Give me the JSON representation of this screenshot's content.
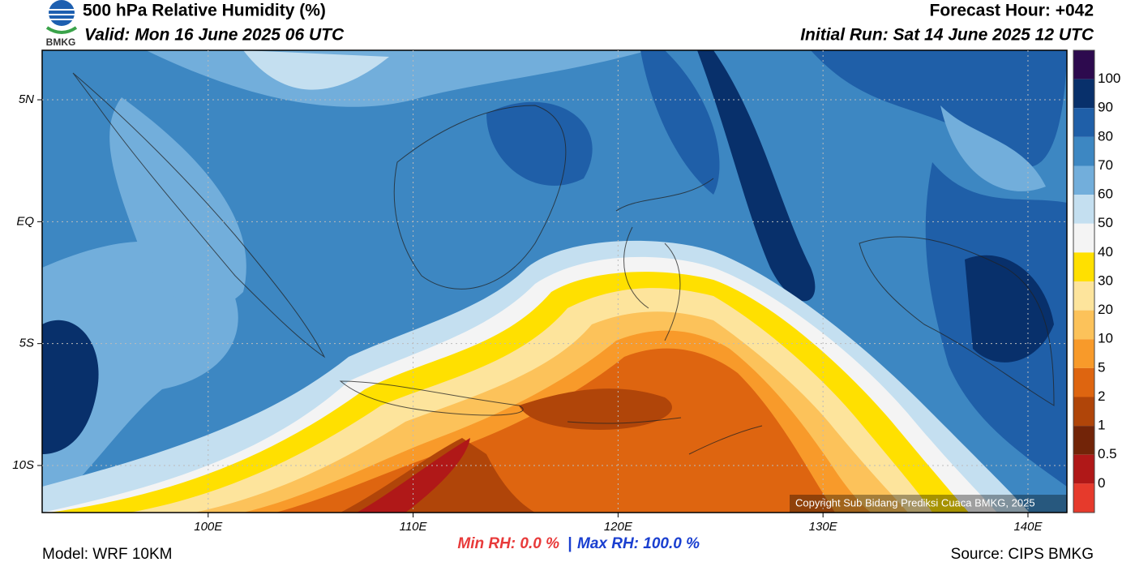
{
  "header": {
    "title": "500 hPa Relative Humidity (%)",
    "valid": "Valid: Mon 16 June 2025 06 UTC",
    "forecast_hour": "Forecast Hour: +042",
    "initial_run": "Initial Run: Sat 14 June 2025 12 UTC",
    "logo_text": "BMKG"
  },
  "map": {
    "xlim": [
      91.9,
      141.9
    ],
    "ylim": [
      -11.93,
      7.03
    ],
    "xticks": [
      {
        "value": 100,
        "label": "100E"
      },
      {
        "value": 110,
        "label": "110E"
      },
      {
        "value": 120,
        "label": "120E"
      },
      {
        "value": 130,
        "label": "130E"
      },
      {
        "value": 140,
        "label": "140E"
      }
    ],
    "yticks": [
      {
        "value": 5,
        "label": "5N"
      },
      {
        "value": 0,
        "label": "EQ"
      },
      {
        "value": -5,
        "label": "5S"
      },
      {
        "value": -10,
        "label": "10S"
      }
    ],
    "copyright": "Copyright Sub Bidang Prediksi Cuaca BMKG, 2025"
  },
  "colorbar": {
    "levels": [
      100,
      90,
      80,
      70,
      60,
      50,
      40,
      30,
      20,
      10,
      5,
      2,
      1,
      0.5,
      0
    ],
    "colors": [
      "#2d0a4e",
      "#08306b",
      "#1f5fa8",
      "#3d87c2",
      "#72aedb",
      "#c4dff0",
      "#f4f4f4",
      "#ffe000",
      "#fde49c",
      "#fcc25a",
      "#f89a2a",
      "#de6510",
      "#b04509",
      "#722408",
      "#b01818",
      "#e63a2c"
    ]
  },
  "footer": {
    "model": "Model: WRF 10KM",
    "min_rh": "Min RH:   0.0 %",
    "separator": "|",
    "max_rh": "Max RH: 100.0 %",
    "source": "Source: CIPS BMKG"
  }
}
